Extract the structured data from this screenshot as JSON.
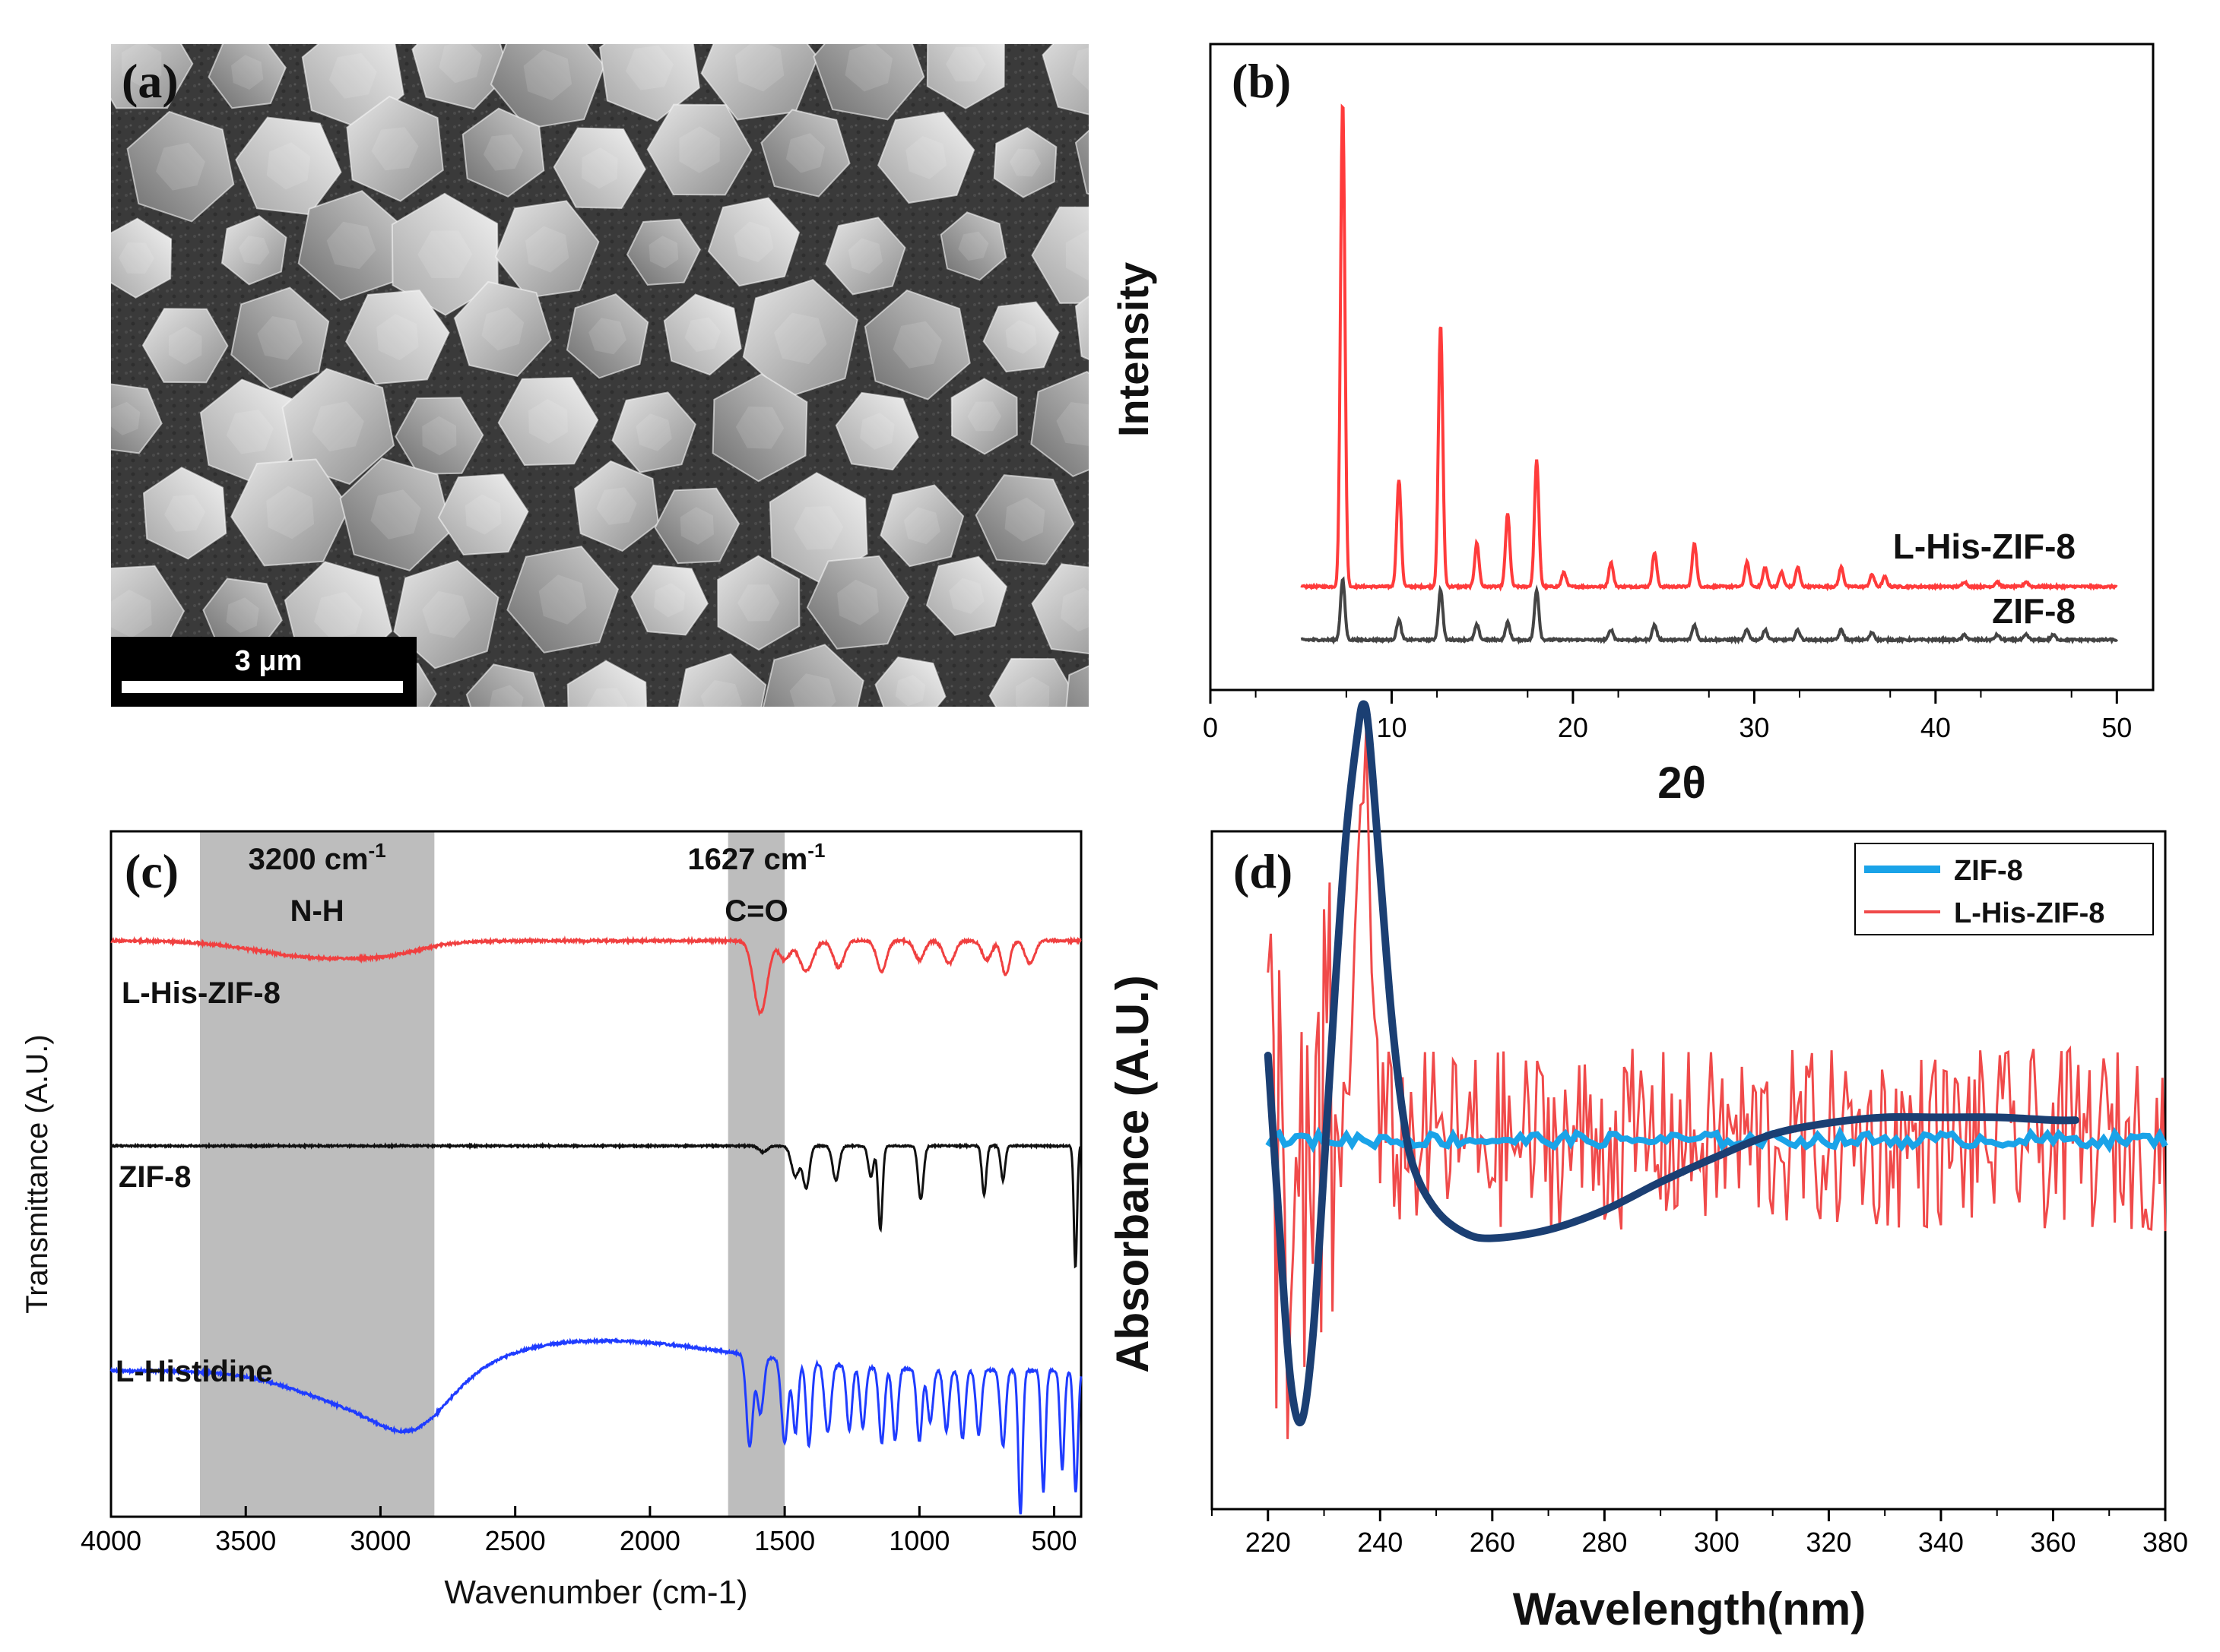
{
  "panel_labels": {
    "a": "(a)",
    "b": "(b)",
    "c": "(c)",
    "d": "(d)"
  },
  "sem": {
    "scale_bar_label": "3 μm"
  },
  "chart_data": [
    {
      "id": "b",
      "type": "line",
      "xlabel": "2θ",
      "ylabel": "Intensity",
      "xlim": [
        0,
        52
      ],
      "xticks": [
        0,
        10,
        20,
        30,
        40,
        50
      ],
      "yticks_shown": false,
      "series": [
        {
          "name": "L-His-ZIF-8",
          "color": "#ff3b3b",
          "peaks": [
            [
              7.3,
              1.0
            ],
            [
              10.4,
              0.22
            ],
            [
              12.7,
              0.54
            ],
            [
              14.7,
              0.09
            ],
            [
              16.4,
              0.15
            ],
            [
              18.0,
              0.26
            ],
            [
              19.5,
              0.03
            ],
            [
              22.1,
              0.05
            ],
            [
              24.5,
              0.07
            ],
            [
              26.7,
              0.09
            ],
            [
              29.6,
              0.05
            ],
            [
              30.6,
              0.04
            ],
            [
              31.5,
              0.03
            ],
            [
              32.4,
              0.04
            ],
            [
              34.8,
              0.04
            ],
            [
              36.5,
              0.025
            ],
            [
              37.2,
              0.02
            ],
            [
              41.6,
              0.01
            ],
            [
              43.4,
              0.01
            ],
            [
              45.0,
              0.01
            ]
          ],
          "baseline_offset": 0.12
        },
        {
          "name": "ZIF-8",
          "color": "#444444",
          "peaks": [
            [
              7.3,
              0.12
            ],
            [
              10.4,
              0.04
            ],
            [
              12.7,
              0.1
            ],
            [
              14.7,
              0.03
            ],
            [
              16.4,
              0.035
            ],
            [
              18.0,
              0.1
            ],
            [
              22.1,
              0.02
            ],
            [
              24.5,
              0.03
            ],
            [
              26.7,
              0.03
            ],
            [
              29.6,
              0.02
            ],
            [
              30.6,
              0.02
            ],
            [
              32.4,
              0.02
            ],
            [
              34.8,
              0.02
            ],
            [
              36.5,
              0.015
            ],
            [
              41.6,
              0.01
            ],
            [
              43.4,
              0.01
            ],
            [
              45.0,
              0.01
            ],
            [
              46.5,
              0.01
            ]
          ],
          "baseline_offset": 0.0
        }
      ]
    },
    {
      "id": "c",
      "type": "line",
      "xlabel": "Wavenumber (cm-1)",
      "ylabel": "Transmittance (A.U.)",
      "xlim": [
        4000,
        400
      ],
      "xticks": [
        4000,
        3500,
        3000,
        2500,
        2000,
        1500,
        1000,
        500
      ],
      "highlight_bands": [
        {
          "from": 3670,
          "to": 2800,
          "label_top": "3200 cm",
          "label_sup": "-1",
          "label_bottom": "N-H"
        },
        {
          "from": 1710,
          "to": 1500,
          "label_top": "1627 cm",
          "label_sup": "-1",
          "label_bottom": "C=O"
        }
      ],
      "series": [
        {
          "name": "L-His-ZIF-8",
          "color": "#f04040"
        },
        {
          "name": "ZIF-8",
          "color": "#111111"
        },
        {
          "name": "L-Histidine",
          "color": "#1f3cff"
        }
      ]
    },
    {
      "id": "d",
      "type": "line",
      "xlabel": "Wavelength(nm)",
      "ylabel": "Absorbance (A.U.)",
      "xlim": [
        210,
        380
      ],
      "xticks": [
        220,
        240,
        260,
        280,
        300,
        320,
        340,
        360,
        380
      ],
      "legend_position": "top-right",
      "series": [
        {
          "name": "ZIF-8",
          "color": "#1aa3e8"
        },
        {
          "name": "L-His-ZIF-8",
          "color": "#f04a4a"
        },
        {
          "name": "",
          "color": "#1b3f73",
          "x": [
            220,
            222,
            224,
            226,
            228,
            230,
            232,
            234,
            236,
            237,
            238,
            240,
            242,
            244,
            246,
            250,
            255,
            260,
            270,
            280,
            290,
            300,
            310,
            320,
            330,
            340,
            350,
            360,
            364
          ],
          "y": [
            0.3,
            -0.3,
            -0.85,
            -1.0,
            -0.7,
            -0.1,
            0.55,
            1.1,
            1.45,
            1.55,
            1.45,
            0.95,
            0.45,
            0.1,
            -0.1,
            -0.25,
            -0.33,
            -0.35,
            -0.32,
            -0.25,
            -0.15,
            -0.06,
            0.02,
            0.06,
            0.08,
            0.08,
            0.08,
            0.07,
            0.07
          ]
        }
      ]
    }
  ]
}
